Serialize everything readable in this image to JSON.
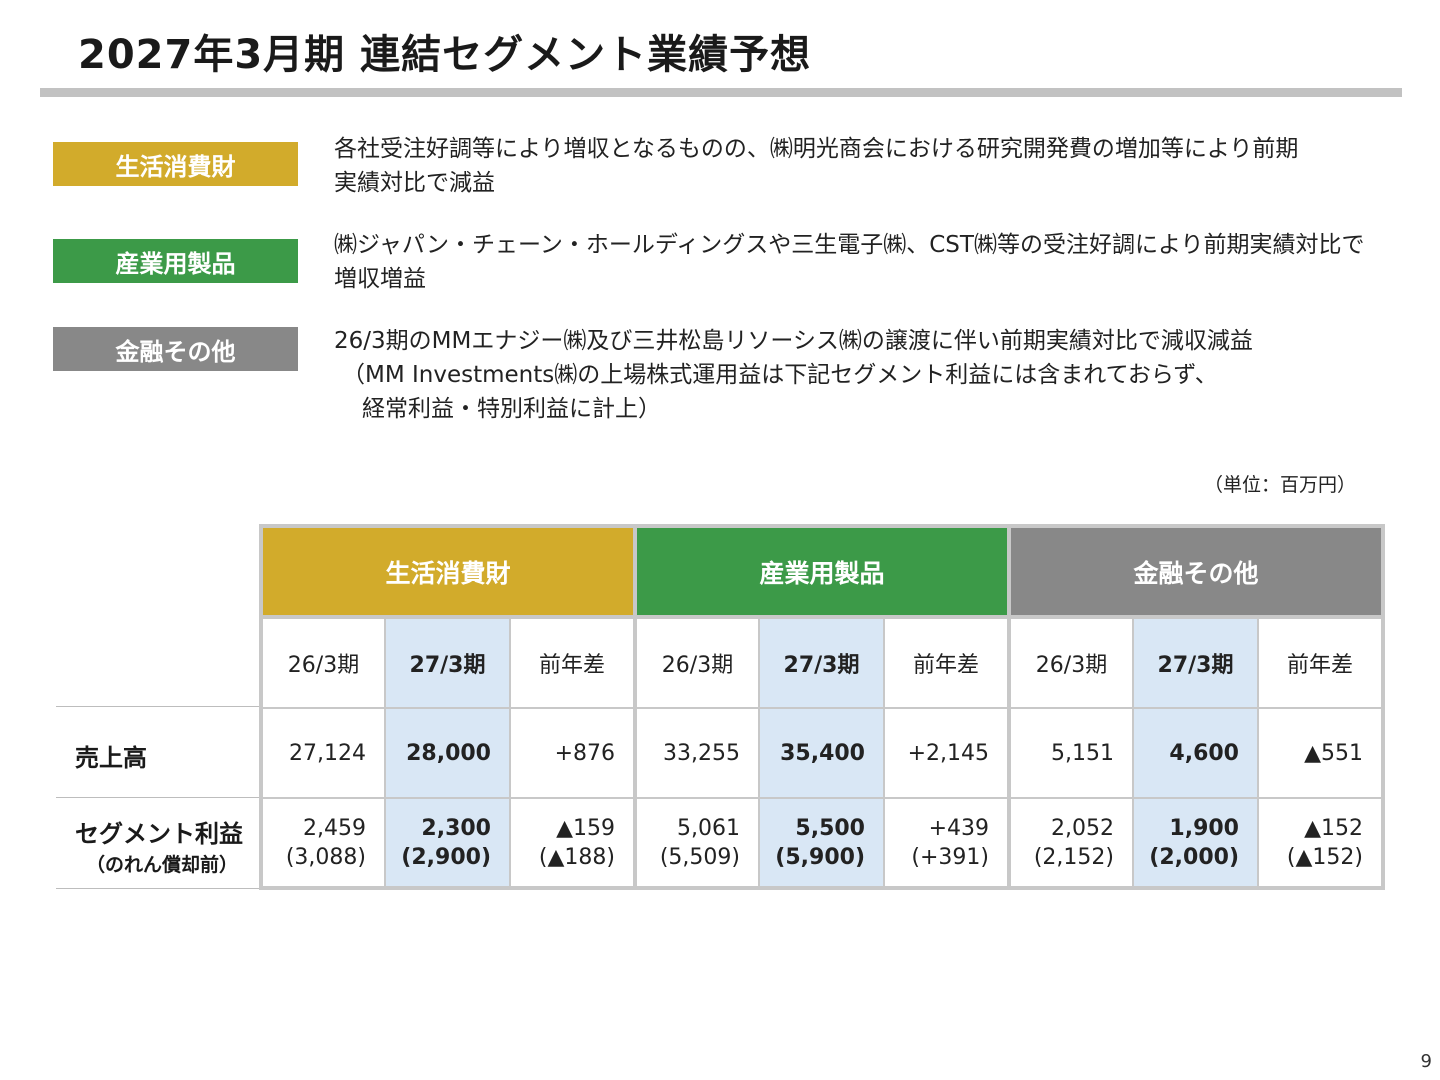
{
  "title": "2027年3月期 連結セグメント業績予想",
  "colors": {
    "lifestyle": "#d2ab2b",
    "industrial": "#3c9a48",
    "finance": "#888888",
    "highlight": "#d9e7f5",
    "rule": "#c2c2c2"
  },
  "segments": [
    {
      "label": "生活消費財",
      "lines": [
        "各社受注好調等により増収となるものの、㈱明光商会における研究開発費の増加等により前期",
        "実績対比で減益"
      ]
    },
    {
      "label": "産業用製品",
      "lines": [
        "㈱ジャパン・チェーン・ホールディングスや三生電子㈱、CST㈱等の受注好調により前期実績対比で",
        "増収増益"
      ]
    },
    {
      "label": "金融その他",
      "lines": [
        "26/3期のMMエナジー㈱及び三井松島リソーシス㈱の譲渡に伴い前期実績対比で減収減益",
        "（MM Investments㈱の上場株式運用益は下記セグメント利益には含まれておらず、",
        "経常利益・特別利益に計上）"
      ]
    }
  ],
  "unit": "（単位：百万円）",
  "table": {
    "groups": [
      "生活消費財",
      "産業用製品",
      "金融その他"
    ],
    "columns": [
      "26/3期",
      "27/3期",
      "前年差",
      "26/3期",
      "27/3期",
      "前年差",
      "26/3期",
      "27/3期",
      "前年差"
    ],
    "rows": [
      {
        "label": "売上高",
        "sublabel": "",
        "values": [
          "27,124",
          "28,000",
          "+876",
          "33,255",
          "35,400",
          "+2,145",
          "5,151",
          "4,600",
          "▲551"
        ],
        "values2": []
      },
      {
        "label": "セグメント利益",
        "sublabel": "（のれん償却前）",
        "values": [
          "2,459",
          "2,300",
          "▲159",
          "5,061",
          "5,500",
          "+439",
          "2,052",
          "1,900",
          "▲152"
        ],
        "values2": [
          "(3,088)",
          "(2,900)",
          "(▲188)",
          "(5,509)",
          "(5,900)",
          "(+391)",
          "(2,152)",
          "(2,000)",
          "(▲152)"
        ]
      }
    ]
  },
  "page_number": "9"
}
